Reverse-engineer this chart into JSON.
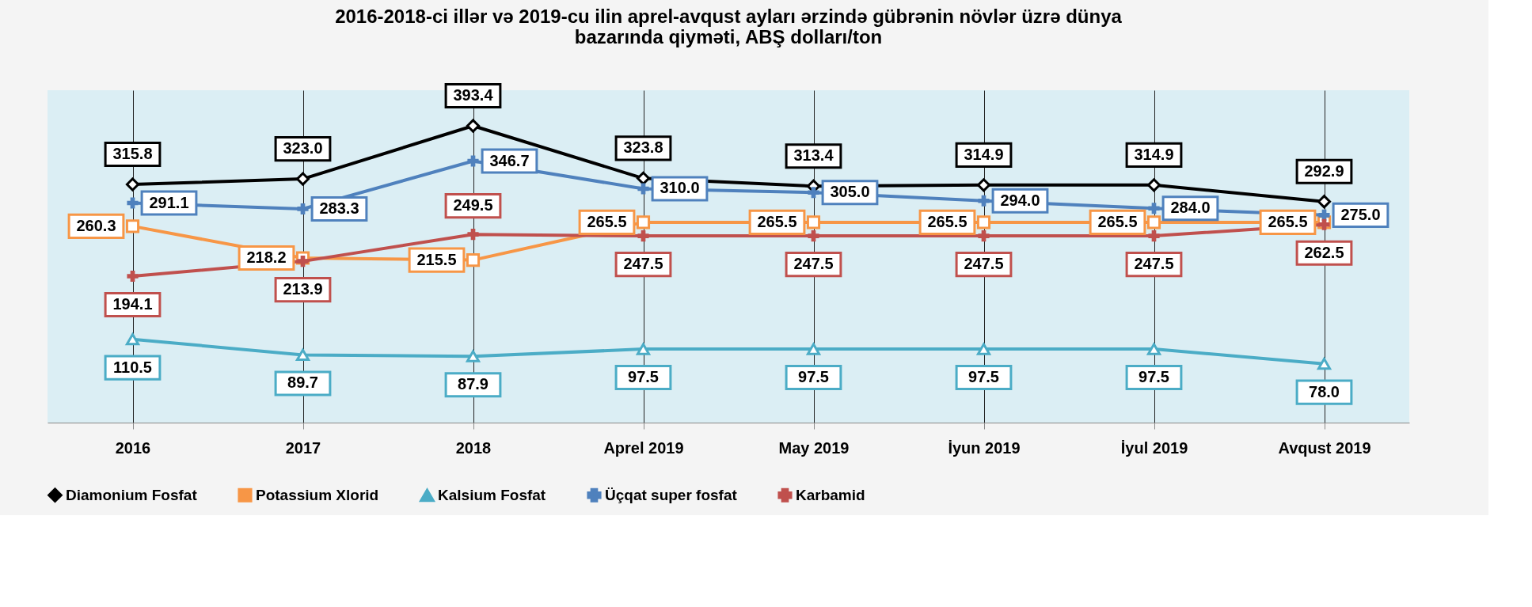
{
  "chart_data": {
    "type": "line",
    "title": "2016-2018-ci illər və 2019-cu ilin aprel-avqust ayları ərzində gübrənin növlər üzrə dünya bazarında qiyməti, ABŞ dolları/ton",
    "categories": [
      "2016",
      "2017",
      "2018",
      "Aprel 2019",
      "May 2019",
      "İyun 2019",
      "İyul 2019",
      "Avqust 2019"
    ],
    "series": [
      {
        "name": "Diamonium Fosfat",
        "color": "#000000",
        "marker": "diamond",
        "values": [
          315.8,
          323.0,
          393.4,
          323.8,
          313.4,
          314.9,
          314.9,
          292.9
        ],
        "value_labels": [
          "315.8",
          "323.0",
          "393.4",
          "323.8",
          "313.4",
          "314.9",
          "314.9",
          "292.9"
        ]
      },
      {
        "name": "Potassium Xlorid",
        "color": "#f79646",
        "marker": "square",
        "values": [
          260.3,
          218.2,
          215.5,
          265.5,
          265.5,
          265.5,
          265.5,
          265.5
        ],
        "value_labels": [
          "260.3",
          "218.2",
          "215.5",
          "265.5",
          "265.5",
          "265.5",
          "265.5",
          "265.5"
        ]
      },
      {
        "name": "Kalsium Fosfat",
        "color": "#4bacc6",
        "marker": "triangle",
        "values": [
          110.5,
          89.7,
          87.9,
          97.5,
          97.5,
          97.5,
          97.5,
          78.0
        ],
        "value_labels": [
          "110.5",
          "89.7",
          "87.9",
          "97.5",
          "97.5",
          "97.5",
          "97.5",
          "78.0"
        ]
      },
      {
        "name": "Üçqat super fosfat",
        "color": "#4f81bd",
        "marker": "cross",
        "values": [
          291.1,
          283.3,
          346.7,
          310.0,
          305.0,
          294.0,
          284.0,
          275.0
        ],
        "value_labels": [
          "291.1",
          "283.3",
          "346.7",
          "310.0",
          "305.0",
          "294.0",
          "284.0",
          "275.0"
        ]
      },
      {
        "name": "Karbamid",
        "color": "#c0504d",
        "marker": "cross",
        "values": [
          194.1,
          213.9,
          249.5,
          247.5,
          247.5,
          247.5,
          247.5,
          262.5
        ],
        "value_labels": [
          "194.1",
          "213.9",
          "249.5",
          "247.5",
          "247.5",
          "247.5",
          "247.5",
          "262.5"
        ]
      }
    ],
    "grid": "x",
    "legend": "bottom",
    "tick_labels": "x"
  }
}
